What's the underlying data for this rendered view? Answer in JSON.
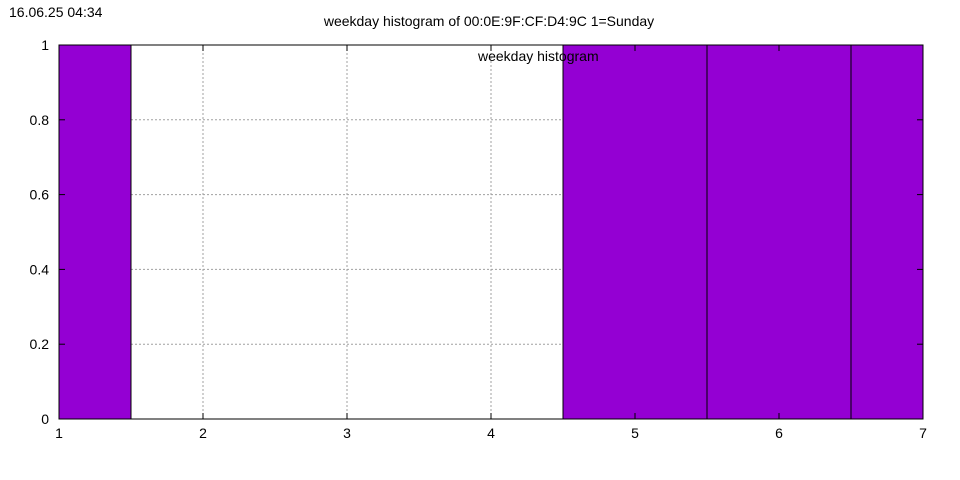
{
  "timestamp": "16.06.25 04:34",
  "chart_data": {
    "type": "bar",
    "title": "weekday histogram of 00:0E:9F:CF:D4:9C 1=Sunday",
    "legend_label": "weekday histogram",
    "legend_position": "top-center",
    "xlabel": "",
    "ylabel": "",
    "xlim": [
      1,
      7
    ],
    "ylim": [
      0,
      1
    ],
    "x_ticks": [
      "1",
      "2",
      "3",
      "4",
      "5",
      "6",
      "7"
    ],
    "y_ticks": [
      "0",
      "0.2",
      "0.4",
      "0.6",
      "0.8",
      "1"
    ],
    "grid": true,
    "bar_color": "#9400D3",
    "x": [
      1,
      2,
      3,
      4,
      5,
      6,
      7
    ],
    "values": [
      1,
      0,
      0,
      0,
      1,
      1,
      1
    ]
  }
}
